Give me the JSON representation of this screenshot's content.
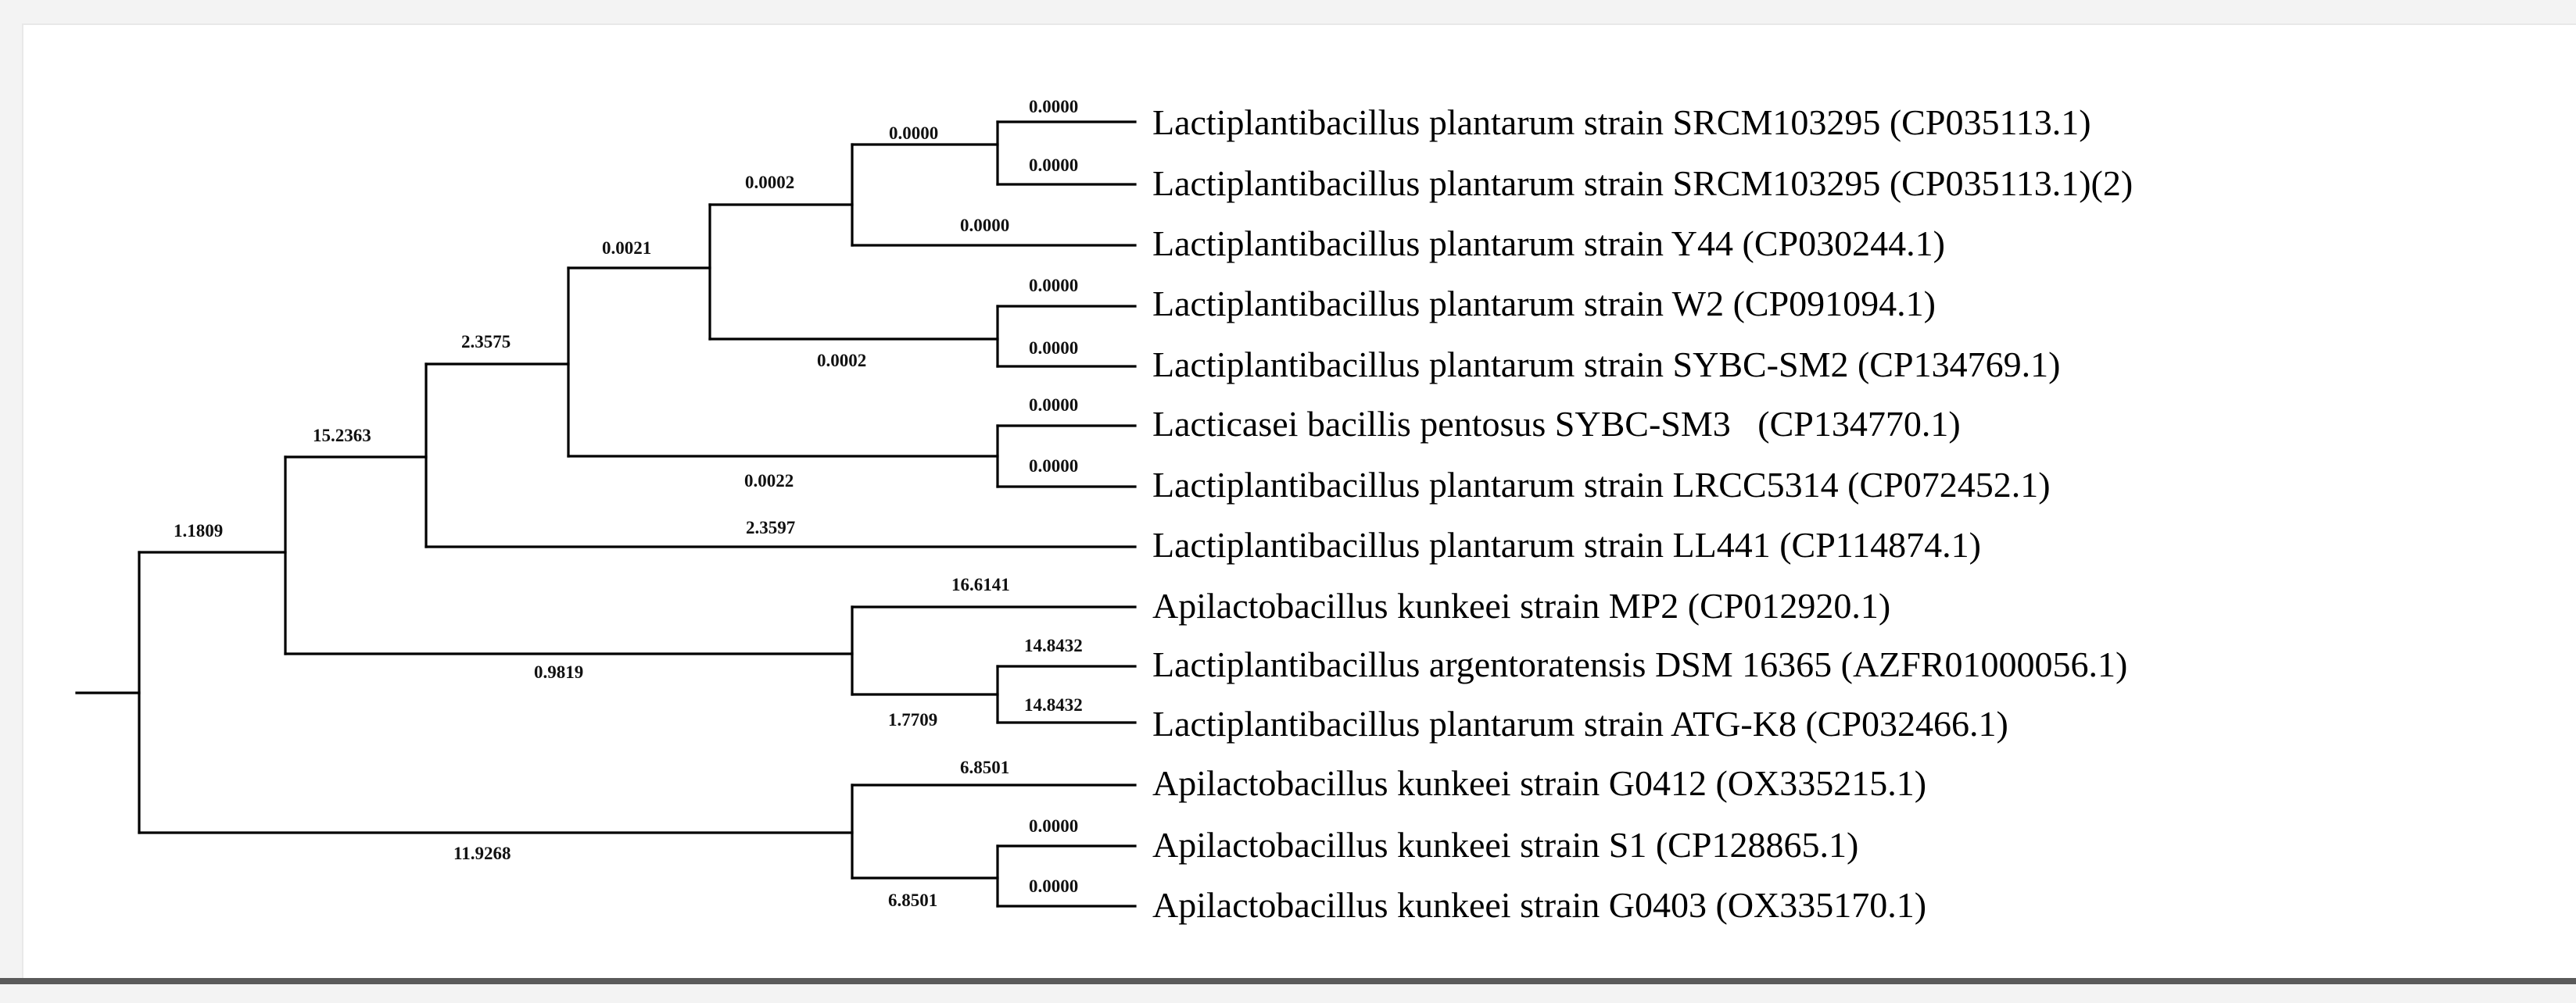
{
  "tree": {
    "leaves": [
      "Lactiplantibacillus plantarum strain SRCM103295 (CP035113.1)",
      "Lactiplantibacillus plantarum strain SRCM103295 (CP035113.1)(2)",
      "Lactiplantibacillus plantarum strain Y44 (CP030244.1)",
      "Lactiplantibacillus plantarum strain W2 (CP091094.1)",
      "Lactiplantibacillus plantarum strain SYBC-SM2 (CP134769.1)",
      "Lacticasei bacillis pentosus SYBC-SM3   (CP134770.1)",
      "Lactiplantibacillus plantarum strain LRCC5314 (CP072452.1)",
      "Lactiplantibacillus plantarum strain LL441 (CP114874.1)",
      "Apilactobacillus kunkeei strain MP2 (CP012920.1)",
      "Lactiplantibacillus argentoratensis DSM 16365 (AZFR01000056.1)",
      "Lactiplantibacillus plantarum strain ATG-K8 (CP032466.1)",
      "Apilactobacillus kunkeei strain G0412 (OX335215.1)",
      "Apilactobacillus kunkeei strain S1 (CP128865.1)",
      "Apilactobacillus kunkeei strain G0403 (OX335170.1)"
    ],
    "branch_labels": [
      "0.0000",
      "0.0000",
      "0.0000",
      "0.0000",
      "0.0000",
      "0.0000",
      "0.0000",
      "0.0000",
      "0.0000",
      "0.0000",
      "0.0002",
      "0.0002",
      "0.0021",
      "0.0022",
      "2.3575",
      "2.3597",
      "15.2363",
      "1.1809",
      "0.9819",
      "16.6141",
      "1.7709",
      "14.8432",
      "14.8432",
      "6.8501",
      "6.8501",
      "11.9268"
    ]
  }
}
